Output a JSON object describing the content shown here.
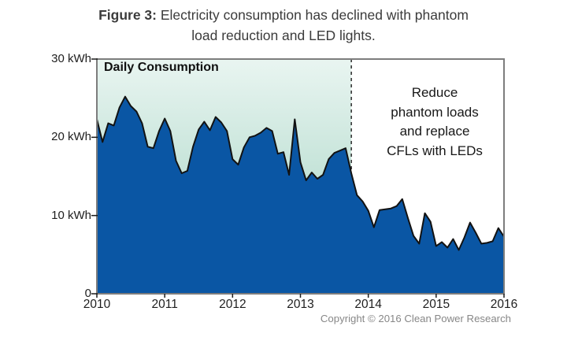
{
  "title": {
    "bold": "Figure 3:",
    "line1_rest": " Electricity consumption has declined with phantom",
    "line2": "load reduction and LED lights."
  },
  "chart_data": {
    "type": "area",
    "series_name": "Daily Consumption",
    "unit": "kWh",
    "x_description": "monthly values, January 2010 through January 2016",
    "xlim": [
      2010,
      2016
    ],
    "ylim": [
      0,
      30
    ],
    "xtick_labels": [
      "2010",
      "2011",
      "2012",
      "2013",
      "2014",
      "2015",
      "2016"
    ],
    "xtick_values": [
      2010,
      2011,
      2012,
      2013,
      2014,
      2015,
      2016
    ],
    "ytick_labels": [
      "30 kWh",
      "20 kWh",
      "10 kWh",
      "0"
    ],
    "ytick_values": [
      30,
      20,
      10,
      0
    ],
    "values": [
      22.3,
      19.4,
      21.8,
      21.5,
      23.8,
      25.2,
      24.0,
      23.3,
      21.8,
      18.8,
      18.6,
      20.8,
      22.4,
      20.8,
      17.0,
      15.4,
      15.7,
      18.8,
      21.0,
      22.0,
      20.9,
      22.6,
      21.9,
      20.8,
      17.2,
      16.5,
      18.7,
      20.0,
      20.2,
      20.6,
      21.2,
      20.8,
      17.9,
      18.1,
      15.2,
      22.3,
      16.8,
      14.5,
      15.5,
      14.7,
      15.2,
      17.2,
      18.0,
      18.3,
      18.6,
      15.4,
      12.6,
      11.8,
      10.6,
      8.5,
      10.7,
      10.8,
      10.9,
      11.2,
      12.1,
      9.7,
      7.4,
      6.4,
      10.3,
      9.2,
      6.1,
      6.6,
      5.9,
      7.0,
      5.6,
      7.2,
      9.1,
      7.8,
      6.4,
      6.5,
      6.7,
      8.4,
      7.3
    ],
    "divider_x": 2013.75,
    "region_label": "Daily Consumption",
    "annotation": "Reduce\nphantom loads\nand replace\nCFLs with LEDs",
    "grid": false,
    "legend": false,
    "colors": {
      "area_fill": "#0a56a4",
      "area_stroke": "#121212",
      "highlight_top": "#e9f5f1",
      "highlight_bottom": "#9fd1bf",
      "plot_border": "#7d7d7d",
      "divider_line": "#1a1a1a",
      "tick": "#1a1a1a"
    }
  },
  "footer": {
    "copyright": "Copyright © 2016 Clean Power Research"
  }
}
